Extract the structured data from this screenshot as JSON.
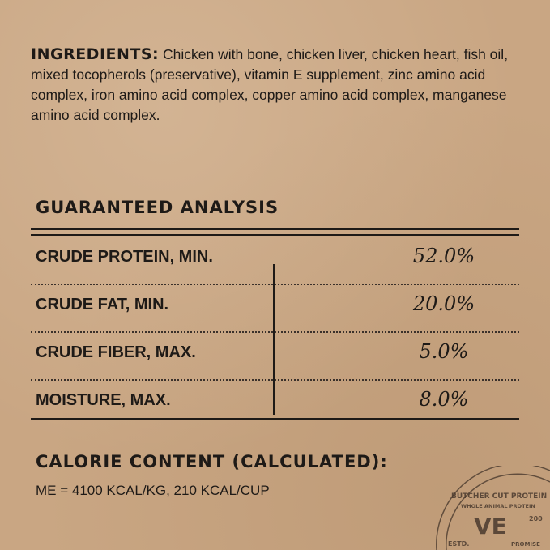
{
  "ingredients": {
    "label": "INGREDIENTS:",
    "text": "Chicken with bone, chicken liver, chicken heart, fish oil, mixed tocopherols (preservative), vitamin E supplement, zinc amino acid complex, iron amino acid complex, copper amino acid complex, manganese amino acid complex."
  },
  "analysis": {
    "title": "GUARANTEED ANALYSIS",
    "rows": [
      {
        "label": "CRUDE PROTEIN, MIN.",
        "value": "52.0%"
      },
      {
        "label": "CRUDE FAT, MIN.",
        "value": "20.0%"
      },
      {
        "label": "CRUDE FIBER, MAX.",
        "value": "5.0%"
      },
      {
        "label": "MOISTURE, MAX.",
        "value": "8.0%"
      }
    ]
  },
  "calorie": {
    "title": "CALORIE CONTENT (CALCULATED):",
    "text": "ME = 4100 KCAL/KG, 210 KCAL/CUP"
  },
  "stamp": {
    "outer": "BUTCHER CUT PROTEIN",
    "inner": "WHOLE ANIMAL PROTEIN",
    "mark": "VE",
    "estd": "ESTD.",
    "year": "200",
    "promise": "PROMISE",
    "protein": "PROTEIN"
  },
  "colors": {
    "background": "#c9a683",
    "ink": "#1e1a17"
  }
}
